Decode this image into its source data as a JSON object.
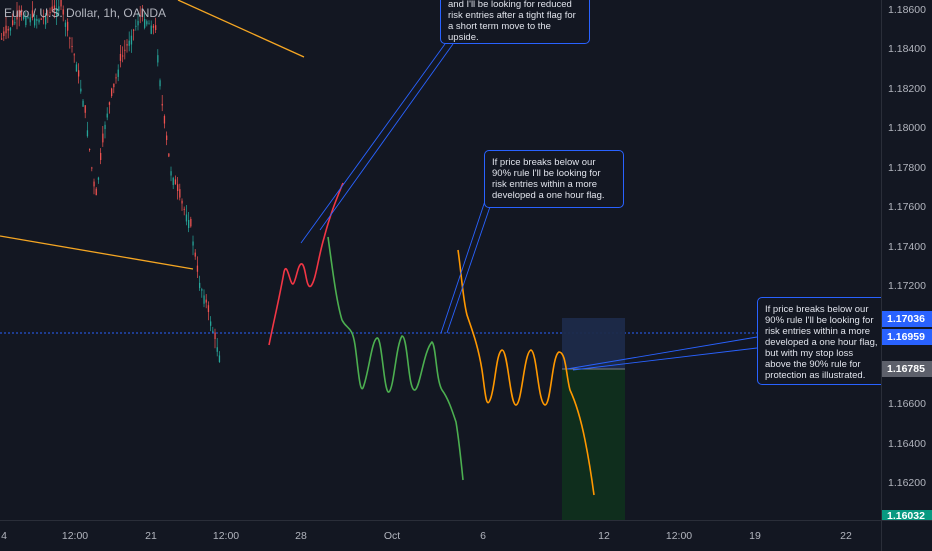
{
  "symbol": "Euro / U.S. Dollar, 1h, OANDA",
  "price_axis": {
    "ticks": [
      "1.18600",
      "1.18400",
      "1.18200",
      "1.18000",
      "1.17800",
      "1.17600",
      "1.17400",
      "1.17200",
      "1.16600",
      "1.16400",
      "1.16200"
    ],
    "badges": [
      {
        "label": "1.17036",
        "color": "#2962ff"
      },
      {
        "label": "1.16959",
        "color": "#2962ff"
      },
      {
        "label": "1.16785",
        "color": "#5d606b"
      },
      {
        "label": "1.16032",
        "color": "#089981"
      }
    ]
  },
  "time_axis": {
    "ticks": [
      "4",
      "12:00",
      "21",
      "12:00",
      "28",
      "Oct",
      "6",
      "12",
      "12:00",
      "19",
      "22"
    ]
  },
  "notes": {
    "top": "and I'll be looking for reduced risk entries after a tight flag for a short term move to the upside.",
    "middle": "If price breaks below our 90% rule I'll be looking for risk entries within a more developed a one hour flag.",
    "right": "If price breaks below our 90% rule I'll be looking for risk entries within a more developed a one hour flag, but with my stop loss above the 90% rule for protection as illustrated."
  },
  "colors": {
    "background": "#131722",
    "up_candle": "#26a69a",
    "down_candle": "#ef5350",
    "trendline": "#f5a623",
    "path_red": "#f23645",
    "path_green": "#4caf50",
    "path_orange": "#ff9800",
    "note_border": "#2962ff",
    "stop_zone": "#1c2a4a",
    "target_zone": "#0f2f1e"
  }
}
